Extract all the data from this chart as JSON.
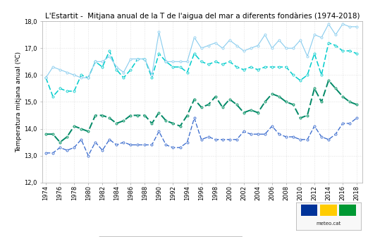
{
  "title": "L'Estartit -  Mitjana anual de la T de l'aigua del mar a diferents fondàries (1974-2018)",
  "ylabel": "Temperatura mitjana anual (ºC)",
  "years": [
    1974,
    1975,
    1976,
    1977,
    1978,
    1979,
    1980,
    1981,
    1982,
    1983,
    1984,
    1985,
    1986,
    1987,
    1988,
    1989,
    1990,
    1991,
    1992,
    1993,
    1994,
    1995,
    1996,
    1997,
    1998,
    1999,
    2000,
    2001,
    2002,
    2003,
    2004,
    2005,
    2006,
    2007,
    2008,
    2009,
    2010,
    2011,
    2012,
    2013,
    2014,
    2015,
    2016,
    2017,
    2018
  ],
  "sup": [
    15.9,
    16.3,
    16.2,
    16.1,
    16.0,
    15.9,
    15.9,
    16.5,
    16.5,
    16.7,
    16.3,
    16.1,
    16.6,
    16.6,
    16.6,
    16.0,
    17.6,
    16.5,
    16.5,
    16.5,
    16.5,
    17.4,
    17.0,
    17.1,
    17.2,
    17.0,
    17.3,
    17.1,
    16.9,
    17.0,
    17.1,
    17.5,
    17.0,
    17.3,
    17.0,
    17.0,
    17.3,
    16.7,
    17.5,
    17.4,
    17.9,
    17.5,
    17.9,
    17.8,
    17.8
  ],
  "m20": [
    15.9,
    15.2,
    15.5,
    15.4,
    15.4,
    16.0,
    15.9,
    16.5,
    16.3,
    16.9,
    16.2,
    15.9,
    16.2,
    16.6,
    16.6,
    15.9,
    16.8,
    16.5,
    16.3,
    16.3,
    16.1,
    16.8,
    16.5,
    16.4,
    16.5,
    16.4,
    16.5,
    16.3,
    16.2,
    16.3,
    16.2,
    16.3,
    16.3,
    16.3,
    16.3,
    16.0,
    15.8,
    16.0,
    16.8,
    16.0,
    17.2,
    17.1,
    16.9,
    16.9,
    16.8
  ],
  "m50": [
    13.8,
    13.8,
    13.5,
    13.7,
    14.1,
    14.0,
    13.9,
    14.5,
    14.5,
    14.4,
    14.2,
    14.3,
    14.5,
    14.5,
    14.5,
    14.2,
    14.6,
    14.3,
    14.2,
    14.1,
    14.5,
    15.1,
    14.8,
    14.9,
    15.2,
    14.8,
    15.1,
    14.9,
    14.6,
    14.7,
    14.6,
    15.0,
    15.3,
    15.2,
    15.0,
    14.9,
    14.4,
    14.5,
    15.5,
    15.0,
    15.8,
    15.5,
    15.2,
    15.0,
    14.9
  ],
  "m80": [
    13.1,
    13.1,
    13.3,
    13.2,
    13.3,
    13.6,
    13.0,
    13.5,
    13.2,
    13.6,
    13.4,
    13.5,
    13.4,
    13.4,
    13.4,
    13.4,
    13.9,
    13.4,
    13.3,
    13.3,
    13.5,
    14.4,
    13.6,
    13.7,
    13.6,
    13.6,
    13.6,
    13.6,
    13.9,
    13.8,
    13.8,
    13.8,
    14.1,
    13.8,
    13.7,
    13.7,
    13.6,
    13.6,
    14.1,
    13.7,
    13.6,
    13.8,
    14.2,
    14.2,
    14.4
  ],
  "color_sup": "#88CCEE",
  "color_m20": "#00CCCC",
  "color_m50": "#008866",
  "color_m80": "#3366CC",
  "ylim": [
    12.0,
    18.0
  ],
  "yticks": [
    12.0,
    13.0,
    14.0,
    15.0,
    16.0,
    17.0,
    18.0
  ],
  "background_color": "#ffffff",
  "grid_color": "#cccccc",
  "title_fontsize": 7.5,
  "label_fontsize": 6.5,
  "tick_fontsize": 6.0,
  "legend_fontsize": 6.0
}
